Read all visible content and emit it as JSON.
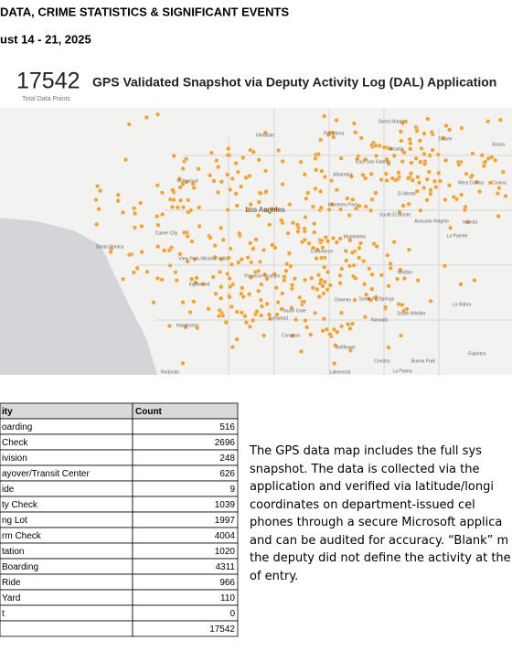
{
  "header": {
    "title": "DATA, CRIME STATISTICS & SIGNIFICANT EVENTS",
    "dates": "ust 14 - 21, 2025"
  },
  "snapshot": {
    "count": "17542",
    "title": "GPS Validated Snapshot via Deputy Activity Log (DAL) Application",
    "caption": "Total Data Points"
  },
  "map": {
    "places": [
      "Glendale",
      "Pasadena",
      "Sierra Madre",
      "Duarte",
      "Arcadia",
      "Azusa",
      "Alhambra",
      "East San Gabriel",
      "Hollywood",
      "Los Angeles",
      "Monterey Park",
      "El Monte",
      "South El Monte",
      "West Covina",
      "Culver City",
      "Santa Monica",
      "View Park-Windsor Hills",
      "Inglewood",
      "Florence-Graham",
      "Commerce",
      "Montebello",
      "Whittier",
      "Downey",
      "Santa Fe Springs",
      "Norwalk",
      "South Whittier",
      "Hawthorne",
      "Lynwood",
      "South Gate",
      "Compton",
      "Bellflower",
      "Cerritos",
      "Lakewood",
      "La Habra",
      "Fullerton",
      "Buena Park",
      "La Palma",
      "Redondo",
      "Avocado Heights",
      "La Puente",
      "Valinda",
      "Covina"
    ]
  },
  "table": {
    "header": [
      "ity",
      "Count"
    ],
    "rows": [
      [
        "oarding",
        "516"
      ],
      [
        "Check",
        "2696"
      ],
      [
        "ivision",
        "248"
      ],
      [
        "ayover/Transit Center",
        "626"
      ],
      [
        "ide",
        "9"
      ],
      [
        "ty Check",
        "1039"
      ],
      [
        "ng Lot",
        "1997"
      ],
      [
        "rm Check",
        "4004"
      ],
      [
        "tation",
        "1020"
      ],
      [
        "Boarding",
        "4311"
      ],
      [
        "Ride",
        "966"
      ],
      [
        "Yard",
        "110"
      ],
      [
        "t",
        "0"
      ]
    ],
    "total": "17542"
  },
  "text": {
    "lines": [
      "The GPS data map includes the full sys",
      "snapshot. The data is collected via the",
      "application and verified via latitude/longi",
      "coordinates on department-issued cel",
      "phones through a secure Microsoft applica",
      "and can be audited for accuracy. “Blank” m",
      "the deputy did not define the activity at the",
      "of entry."
    ]
  }
}
